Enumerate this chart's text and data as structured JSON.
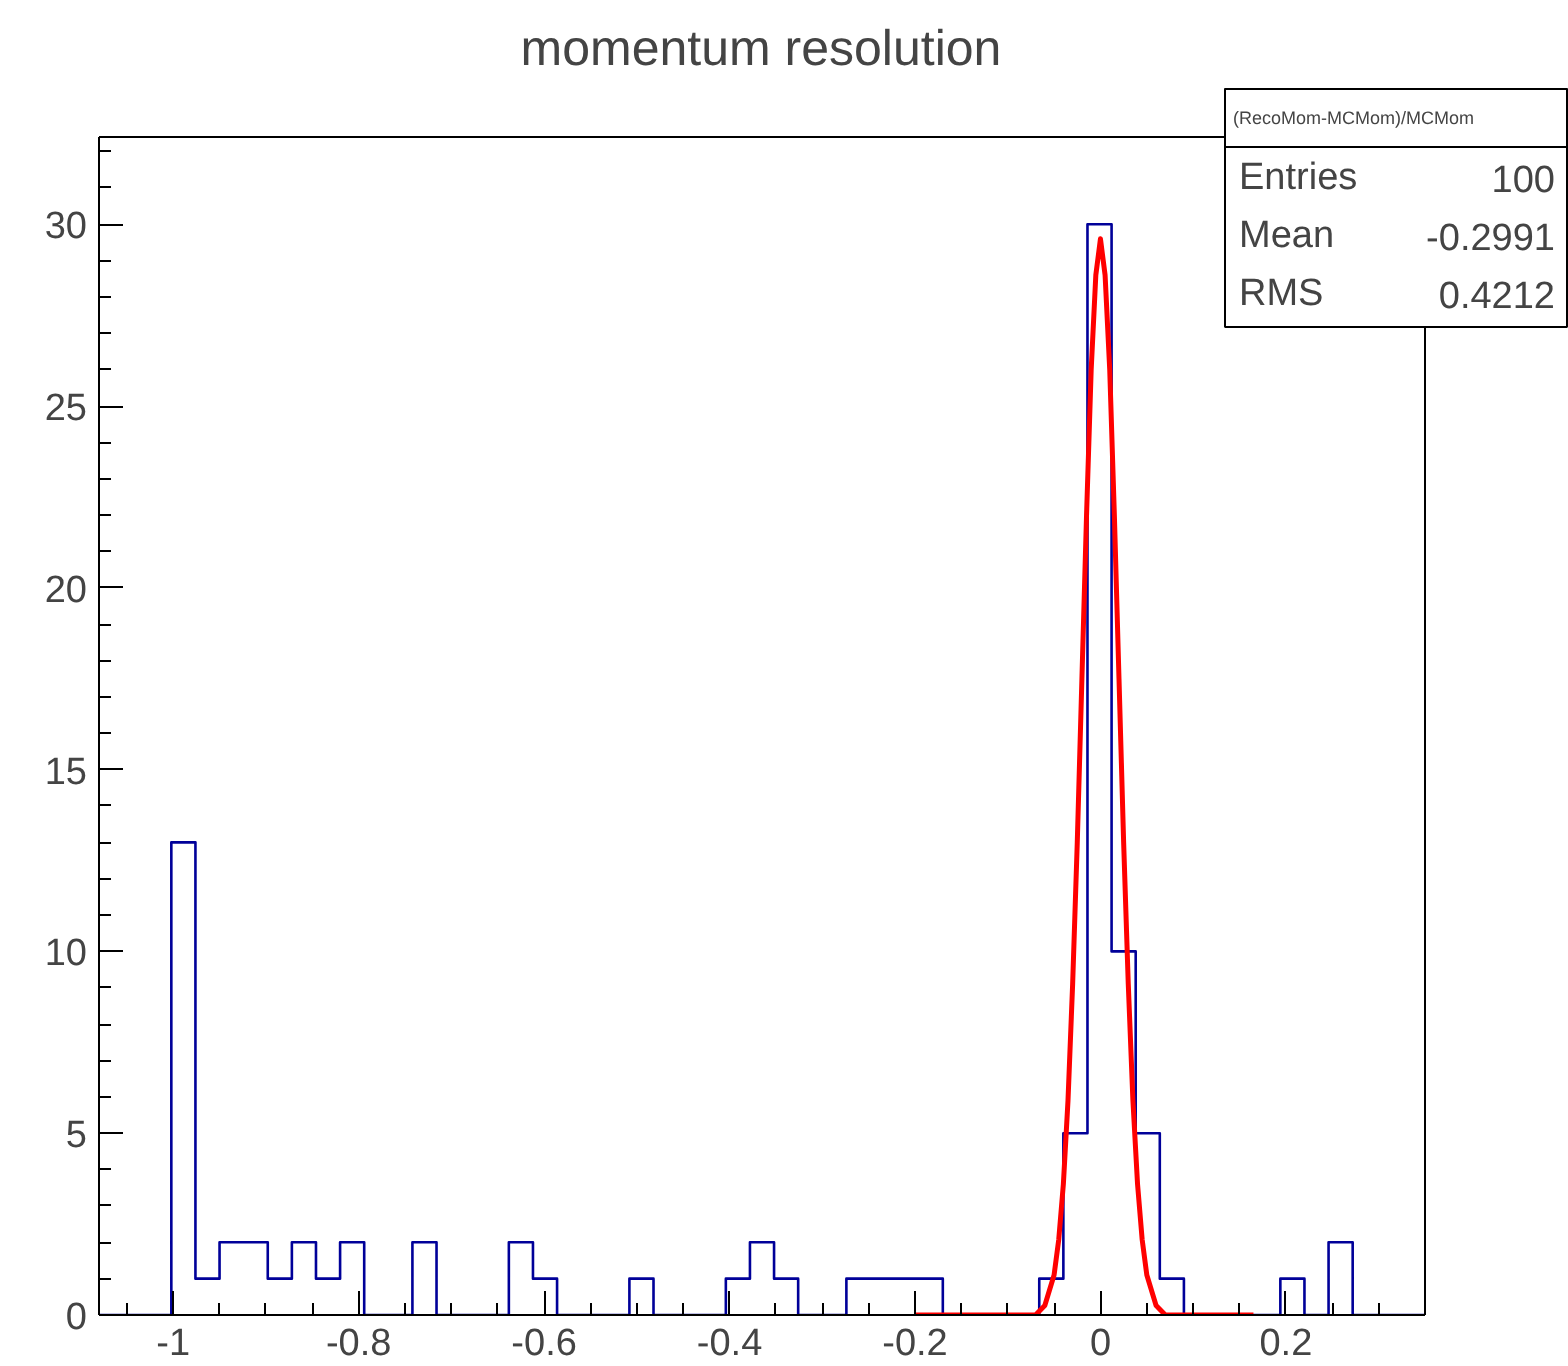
{
  "chart_data": {
    "type": "histogram",
    "title": "momentum resolution",
    "bins": [
      -1.08,
      -1.054,
      -1.028,
      -1.002,
      -0.976,
      -0.95,
      -0.924,
      -0.898,
      -0.872,
      -0.846,
      -0.82,
      -0.794,
      -0.768,
      -0.742,
      -0.716,
      -0.69,
      -0.664,
      -0.638,
      -0.612,
      -0.586,
      -0.56,
      -0.534,
      -0.508,
      -0.482,
      -0.456,
      -0.43,
      -0.404,
      -0.378,
      -0.352,
      -0.326,
      -0.3,
      -0.274,
      -0.248,
      -0.222,
      -0.196,
      -0.17,
      -0.144,
      -0.118,
      -0.092,
      -0.066,
      -0.04,
      -0.014,
      0.012,
      0.038,
      0.064,
      0.09,
      0.116,
      0.142,
      0.168,
      0.194,
      0.22,
      0.246,
      0.272,
      0.298,
      0.324,
      0.35
    ],
    "series": [
      {
        "color": "#000099",
        "values": [
          0,
          0,
          0,
          13,
          1,
          2,
          2,
          1,
          2,
          1,
          2,
          0,
          0,
          2,
          0,
          0,
          0,
          2,
          1,
          0,
          0,
          0,
          1,
          0,
          0,
          0,
          1,
          2,
          1,
          0,
          0,
          1,
          1,
          1,
          1,
          0,
          0,
          0,
          0,
          1,
          5,
          30,
          10,
          5,
          1,
          0,
          0,
          0,
          0,
          1,
          0,
          2,
          0,
          0,
          0
        ]
      },
      {
        "type": "line",
        "color": "#ff0000",
        "x": [
          -0.2,
          -0.1,
          -0.07,
          -0.06,
          -0.05,
          -0.045,
          -0.04,
          -0.035,
          -0.03,
          -0.025,
          -0.02,
          -0.015,
          -0.01,
          -0.005,
          0,
          0.005,
          0.01,
          0.015,
          0.02,
          0.025,
          0.03,
          0.035,
          0.04,
          0.045,
          0.05,
          0.06,
          0.07,
          0.1,
          0.165
        ],
        "values": [
          0,
          0,
          0,
          0.26,
          1.1,
          2.07,
          3.6,
          5.9,
          9.1,
          13.0,
          17.5,
          22.0,
          26.0,
          28.6,
          29.6,
          28.6,
          26.0,
          22.0,
          17.5,
          13.0,
          9.1,
          5.9,
          3.6,
          2.07,
          1.1,
          0.26,
          0,
          0,
          0
        ]
      }
    ],
    "xlim": [
      -1.08,
      0.35
    ],
    "ylim": [
      0,
      32.4
    ],
    "xticks": [
      -1,
      -0.8,
      -0.6,
      -0.4,
      -0.2,
      0,
      0.2
    ],
    "yticks": [
      0,
      5,
      10,
      15,
      20,
      25,
      30
    ],
    "grid": false,
    "annotations": [
      "(RecoMom-MCMom)/MCMom",
      "Entries 100",
      "Mean -0.2991",
      "RMS 0.4212"
    ]
  }
}
